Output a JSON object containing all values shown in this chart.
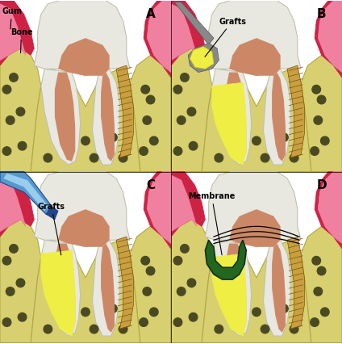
{
  "bg_color": "#ffffff",
  "gum_outer": "#cc2244",
  "gum_inner": "#f080a0",
  "gum_mid": "#e84070",
  "bone_color": "#d8d070",
  "bone_outline": "#b0a840",
  "bone_spots": "#4a4a22",
  "tooth_enamel": "#e8e8e0",
  "tooth_outline": "#c0c0b0",
  "pulp_color": "#cc8866",
  "cement_color": "#c8a040",
  "cement_hatch": "#805010",
  "yellow_graft": "#eeee44",
  "membrane_color": "#226622",
  "membrane_outline": "#113311",
  "blue_tool_main": "#5599cc",
  "blue_tool_dark": "#224488",
  "blue_tool_light": "#99ccee",
  "gray_spoon": "#888888",
  "gray_spoon_dark": "#555555",
  "label_fontsize": 11,
  "annot_fontsize": 7,
  "label_A": "A",
  "label_B": "B",
  "label_C": "C",
  "label_D": "D",
  "text_gum": "Gum",
  "text_bone": "Bone",
  "text_grafts": "Grafts",
  "text_membrane": "Membrane"
}
